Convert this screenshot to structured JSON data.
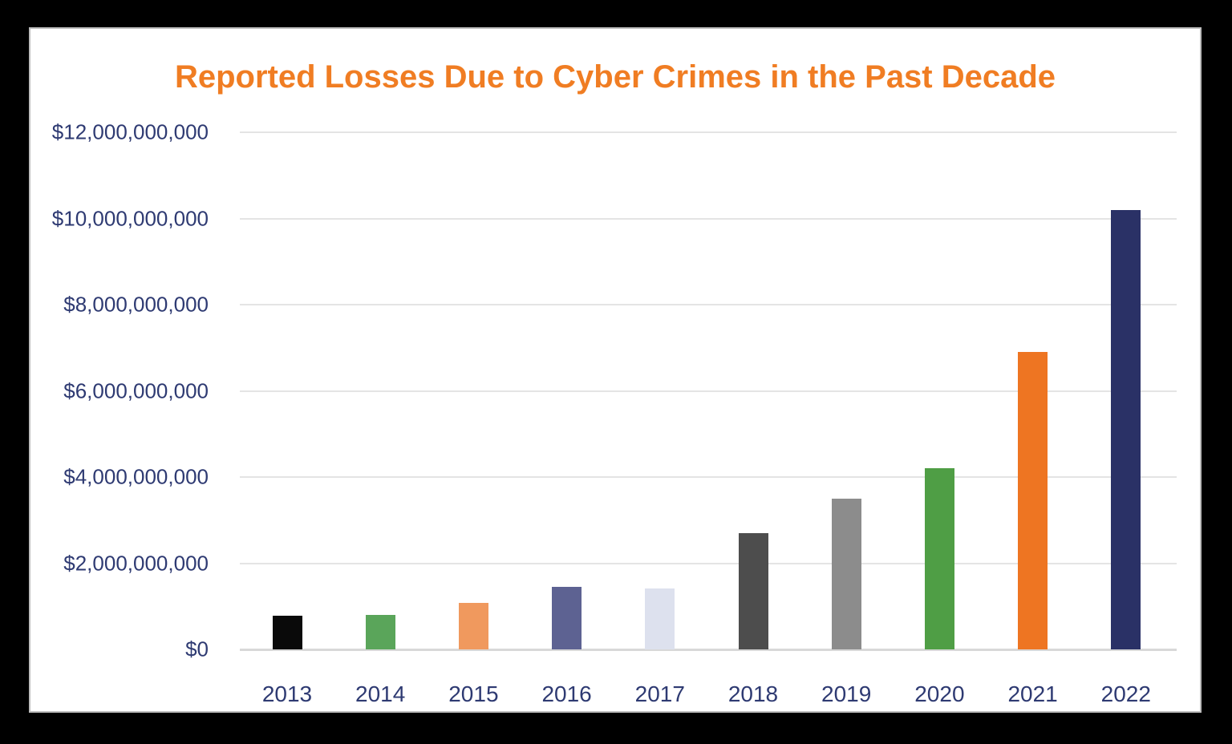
{
  "page": {
    "background": "#000000"
  },
  "card": {
    "background": "#ffffff",
    "border_color": "#bdbdbd"
  },
  "chart_data": {
    "type": "bar",
    "title": "Reported Losses Due to Cyber Crimes in the Past Decade",
    "xlabel": "",
    "ylabel": "",
    "categories": [
      "2013",
      "2014",
      "2015",
      "2016",
      "2017",
      "2018",
      "2019",
      "2020",
      "2021",
      "2022"
    ],
    "values": [
      780000000,
      800000000,
      1070000000,
      1450000000,
      1420000000,
      2700000000,
      3500000000,
      4200000000,
      6900000000,
      10200000000
    ],
    "bar_colors": [
      "#0a0a0a",
      "#5aa55a",
      "#f0995e",
      "#5d6292",
      "#dde1ee",
      "#4d4d4d",
      "#8c8c8c",
      "#4f9e45",
      "#ee7522",
      "#2a3166"
    ],
    "y_tick_values": [
      0,
      2000000000,
      4000000000,
      6000000000,
      8000000000,
      10000000000,
      12000000000
    ],
    "y_tick_labels": [
      "$0",
      "$2,000,000,000",
      "$4,000,000,000",
      "$6,000,000,000",
      "$8,000,000,000",
      "$10,000,000,000",
      "$12,000,000,000"
    ],
    "ylim": [
      0,
      12000000000
    ],
    "grid": true,
    "legend_position": "none",
    "colors": {
      "title": "#f07d23",
      "axis_labels": "#2e3a72",
      "gridline": "#e4e4e4",
      "baseline": "#d8d8d8"
    }
  }
}
